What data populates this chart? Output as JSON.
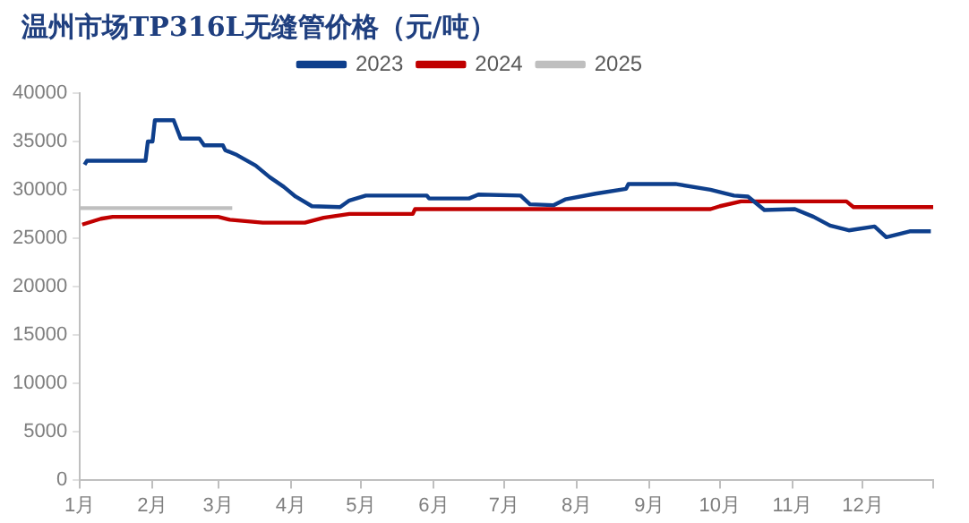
{
  "chart_data": {
    "type": "line",
    "title": "温州市场TP316L无缝管价格（元/吨）",
    "xlim": [
      "--01-01",
      "--12-31"
    ],
    "xticks": [
      {
        "value": "--01-01",
        "label": "1月"
      },
      {
        "value": "--02-01",
        "label": "2月"
      },
      {
        "value": "--03-01",
        "label": "3月"
      },
      {
        "value": "--04-01",
        "label": "4月"
      },
      {
        "value": "--05-01",
        "label": "5月"
      },
      {
        "value": "--06-01",
        "label": "6月"
      },
      {
        "value": "--07-01",
        "label": "7月"
      },
      {
        "value": "--08-01",
        "label": "8月"
      },
      {
        "value": "--09-01",
        "label": "9月"
      },
      {
        "value": "--10-01",
        "label": "10月"
      },
      {
        "value": "--11-01",
        "label": "11月"
      },
      {
        "value": "--12-01",
        "label": "12月"
      },
      {
        "value": "--12-31",
        "label": null
      }
    ],
    "ylim": [
      0,
      40000
    ],
    "yticks": [
      0,
      5000,
      10000,
      15000,
      20000,
      25000,
      30000,
      35000,
      40000
    ],
    "grid": false,
    "legend": "top",
    "marker": "none",
    "line_style": "solid",
    "series": [
      {
        "name": "2023",
        "color": "#0e3f8c",
        "x": [
          "--01-03",
          "--01-04",
          "--01-29",
          "--01-30",
          "--02-01",
          "--02-02",
          "--02-10",
          "--02-13",
          "--02-21",
          "--02-23",
          "--03-03",
          "--03-04",
          "--03-09",
          "--03-17",
          "--03-23",
          "--03-29",
          "--04-03",
          "--04-10",
          "--04-22",
          "--04-26",
          "--05-03",
          "--05-29",
          "--05-30",
          "--06-16",
          "--06-20",
          "--07-08",
          "--07-12",
          "--07-22",
          "--07-27",
          "--08-09",
          "--08-22",
          "--08-23",
          "--09-12",
          "--09-27",
          "--10-07",
          "--10-13",
          "--10-20",
          "--11-02",
          "--11-10",
          "--11-17",
          "--11-25",
          "--12-06",
          "--12-11",
          "--12-21",
          "--12-30"
        ],
        "values": [
          32600,
          33000,
          33000,
          35000,
          35000,
          37200,
          37200,
          35300,
          35300,
          34600,
          34600,
          34100,
          33600,
          32500,
          31300,
          30300,
          29300,
          28300,
          28200,
          28900,
          29400,
          29400,
          29100,
          29100,
          29500,
          29400,
          28500,
          28400,
          29000,
          29600,
          30100,
          30600,
          30600,
          30000,
          29400,
          29300,
          27900,
          28000,
          27200,
          26300,
          25800,
          26200,
          25100,
          25700,
          25700
        ]
      },
      {
        "name": "2024",
        "color": "#c00000",
        "x": [
          "--01-02",
          "--01-10",
          "--01-15",
          "--03-01",
          "--03-06",
          "--03-20",
          "--04-07",
          "--04-15",
          "--04-26",
          "--05-23",
          "--05-24",
          "--09-27",
          "--10-01",
          "--10-10",
          "--11-24",
          "--11-27",
          "--12-31"
        ],
        "values": [
          26400,
          27000,
          27200,
          27200,
          26900,
          26600,
          26600,
          27100,
          27500,
          27500,
          28000,
          28000,
          28300,
          28800,
          28800,
          28200,
          28200
        ]
      },
      {
        "name": "2025",
        "color": "#bfbfbf",
        "x": [
          "--01-01",
          "--03-07"
        ],
        "values": [
          28100,
          28100
        ]
      }
    ]
  }
}
